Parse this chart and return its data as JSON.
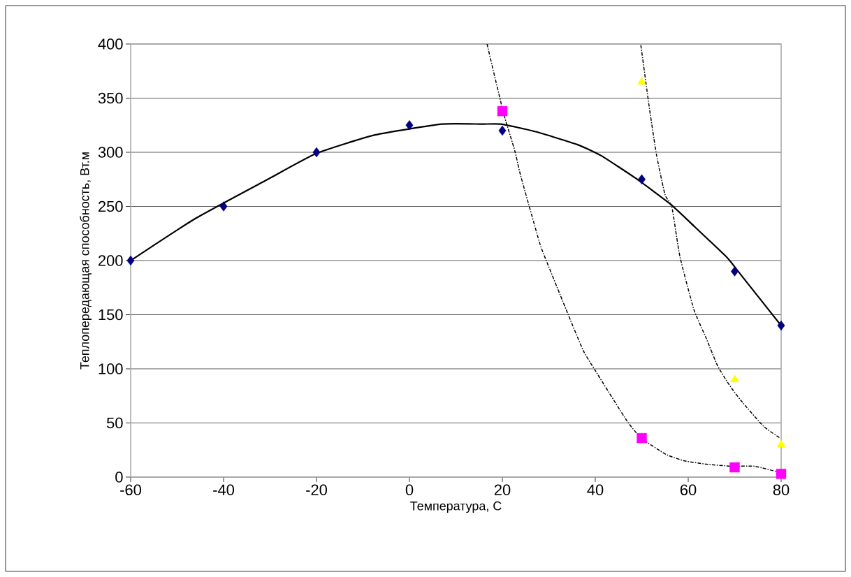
{
  "chart_data": {
    "type": "scatter",
    "xlabel": "Температура, С",
    "ylabel": "Теплопередающая способность, Вт.м",
    "xlim": [
      -60,
      80
    ],
    "ylim": [
      0,
      400
    ],
    "xticks": [
      -60,
      -40,
      -20,
      0,
      20,
      40,
      60,
      80
    ],
    "yticks": [
      0,
      50,
      100,
      150,
      200,
      250,
      300,
      350,
      400
    ],
    "grid": "y",
    "series": [
      {
        "marker": "diamond",
        "color": "#000080",
        "x": [
          -60,
          -40,
          -20,
          0,
          20,
          50,
          70,
          80
        ],
        "values": [
          200,
          250,
          300,
          325,
          320,
          275,
          190,
          140
        ]
      },
      {
        "marker": "square",
        "color": "#ff00ff",
        "x": [
          20,
          50,
          70,
          80
        ],
        "values": [
          338,
          36,
          9,
          3
        ]
      },
      {
        "marker": "triangle",
        "color": "#ffff00",
        "x": [
          50,
          70,
          80
        ],
        "values": [
          365,
          90,
          30
        ]
      },
      {
        "type": "line",
        "marker": "none",
        "line_style": "solid",
        "color": "#000000",
        "x": [
          -60,
          -46,
          -30.5,
          -20,
          -7.4,
          7,
          15.6,
          19.7,
          27.2,
          36.2,
          41.2,
          48.7,
          56.2,
          61.2,
          68.3,
          71.3,
          80
        ],
        "values": [
          200,
          239,
          275,
          299,
          316,
          326,
          326,
          326,
          319,
          307,
          297,
          276,
          252,
          232,
          203,
          187,
          140
        ]
      },
      {
        "type": "line",
        "marker": "none",
        "line_style": "dashed",
        "color": "#000000",
        "x": [
          16.7,
          20.2,
          22.7,
          23.9,
          27.7,
          28.7,
          33.7,
          37.4,
          40.2,
          46.8,
          49.9,
          55.2,
          59.2,
          63.8,
          69.3,
          74.3,
          80
        ],
        "values": [
          400,
          337,
          301,
          279,
          221,
          208,
          155,
          117,
          97,
          52,
          36,
          21,
          15,
          12,
          10,
          10,
          4
        ]
      },
      {
        "type": "line",
        "marker": "none",
        "line_style": "dashed",
        "color": "#000000",
        "x": [
          49.8,
          51,
          51.7,
          53.2,
          55,
          56.5,
          58.2,
          61.2,
          63.8,
          66.3,
          68.7,
          71.3,
          76.2,
          79.8
        ],
        "values": [
          399,
          361,
          339,
          297,
          261,
          249,
          204,
          155,
          129,
          103,
          86,
          71,
          47,
          36
        ]
      }
    ]
  }
}
